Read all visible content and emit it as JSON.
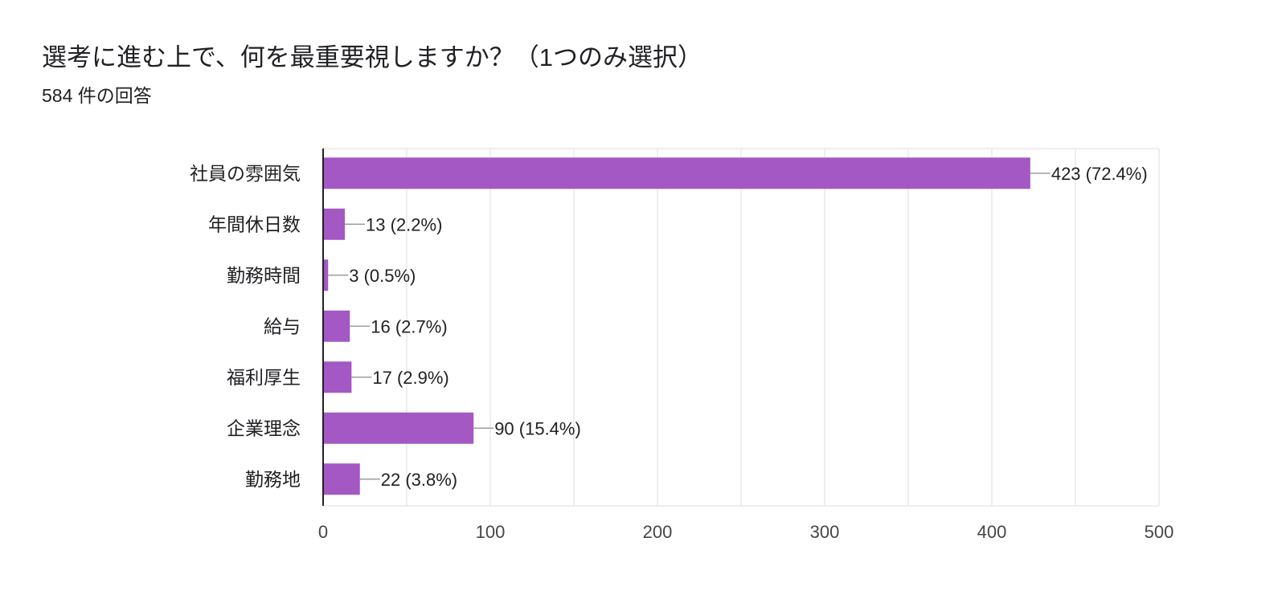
{
  "form_summary": {
    "question": "選考に進む上で、何を最重要視しますか？（1つのみ選択）",
    "response_count": "584 件の回答"
  },
  "chart_data": {
    "type": "bar",
    "orientation": "horizontal",
    "categories": [
      "社員の雰囲気",
      "年間休日数",
      "勤務時間",
      "給与",
      "福利厚生",
      "企業理念",
      "勤務地"
    ],
    "values": [
      423,
      13,
      3,
      16,
      17,
      90,
      22
    ],
    "data_labels": [
      "423 (72.4%)",
      "13 (2.2%)",
      "3 (0.5%)",
      "16 (2.7%)",
      "17 (2.9%)",
      "90 (15.4%)",
      "22 (3.8%)"
    ],
    "xlim": [
      0,
      500
    ],
    "x_ticks": [
      0,
      100,
      200,
      300,
      400,
      500
    ],
    "grid": true,
    "bar_color": "#a358c3",
    "grid_color": "#e8e8e8",
    "axis_color": "#202124"
  }
}
